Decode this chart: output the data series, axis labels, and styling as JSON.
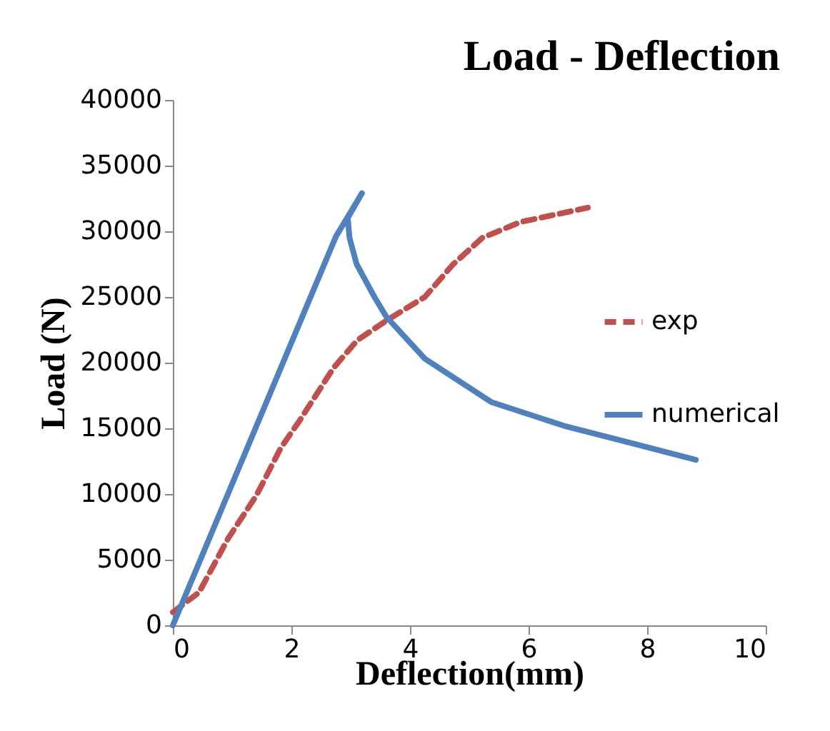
{
  "chart_data": {
    "type": "line",
    "title": "Load - Deflection",
    "xlabel": "Deflection(mm)",
    "ylabel": "Load (N)",
    "xlim": [
      0,
      10
    ],
    "xticks": [
      0,
      2,
      4,
      6,
      8,
      10
    ],
    "ylim": [
      0,
      40000
    ],
    "yticks": [
      0,
      5000,
      10000,
      15000,
      20000,
      25000,
      30000,
      35000,
      40000
    ],
    "grid": false,
    "legend": "right",
    "marker": "none",
    "series": [
      {
        "name": "exp",
        "color": "#c0504d",
        "line_style": "dashed",
        "x": [
          0,
          0.44,
          0.93,
          1.41,
          1.82,
          2.14,
          2.71,
          3.11,
          3.6,
          4.25,
          4.73,
          5.22,
          5.86,
          7.0
        ],
        "values": [
          1000,
          2500,
          6600,
          9900,
          13500,
          15600,
          19600,
          21700,
          23200,
          25000,
          27500,
          29500,
          30700,
          31800
        ]
      },
      {
        "name": "numerical",
        "color": "#4f81bd",
        "line_style": "solid",
        "x": [
          0,
          2.75,
          3.19,
          2.95,
          2.98,
          3.1,
          3.4,
          3.6,
          4.25,
          5.37,
          6.59,
          7.8,
          8.82
        ],
        "values": [
          0,
          29600,
          32900,
          31000,
          29500,
          27500,
          25000,
          23500,
          20300,
          17000,
          15200,
          13800,
          12600
        ]
      }
    ]
  }
}
